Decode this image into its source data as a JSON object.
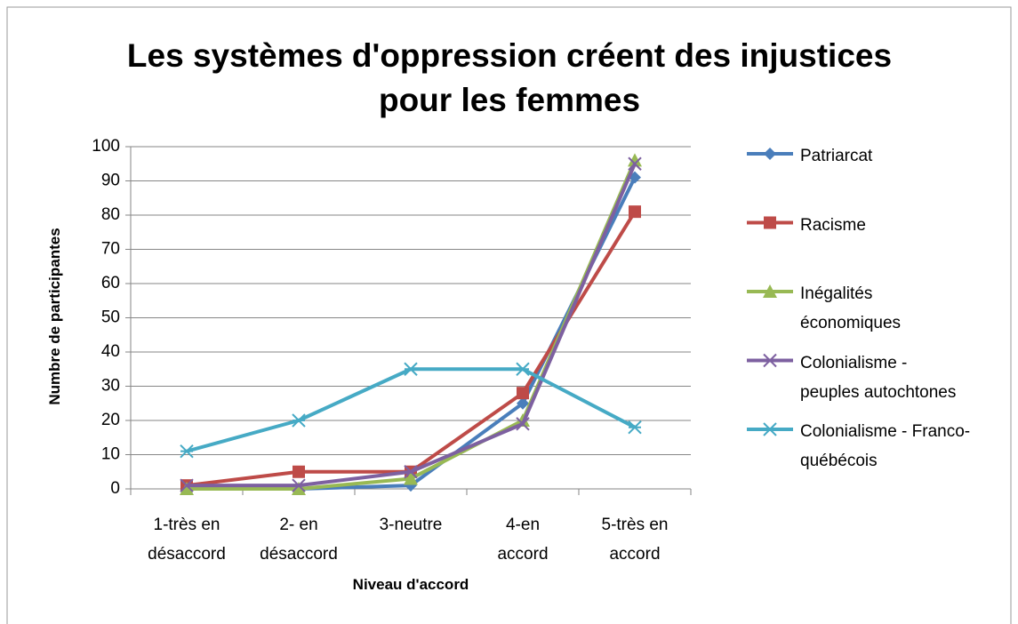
{
  "chart_data": {
    "type": "line",
    "title": "Les systèmes d'oppression créent des injustices\npour les femmes",
    "xlabel": "Niveau d'accord",
    "ylabel": "Numbre de participantes",
    "categories": [
      "1-très en\ndésaccord",
      "2- en\ndésaccord",
      "3-neutre",
      "4-en\naccord",
      "5-très en\naccord"
    ],
    "ylim": [
      0,
      100
    ],
    "yticks": [
      0,
      10,
      20,
      30,
      40,
      50,
      60,
      70,
      80,
      90,
      100
    ],
    "grid": true,
    "legend": "right",
    "series": [
      {
        "name": "Patriarcat",
        "color": "#4a7ebb",
        "marker": "diamond",
        "values": [
          0,
          0,
          1,
          25,
          91
        ]
      },
      {
        "name": "Racisme",
        "color": "#be4b48",
        "marker": "square",
        "values": [
          1,
          5,
          5,
          28,
          81
        ]
      },
      {
        "name": "Inégalités\néconomiques",
        "color": "#98b954",
        "marker": "triangle",
        "values": [
          0,
          0,
          3,
          20,
          96
        ]
      },
      {
        "name": "Colonialisme -\npeuples autochtones",
        "color": "#7d60a0",
        "marker": "x",
        "values": [
          1,
          1,
          5,
          19,
          95
        ]
      },
      {
        "name": "Colonialisme - Franco-\nquébécois",
        "color": "#46aac5",
        "marker": "star",
        "values": [
          11,
          20,
          35,
          35,
          18
        ]
      }
    ]
  }
}
